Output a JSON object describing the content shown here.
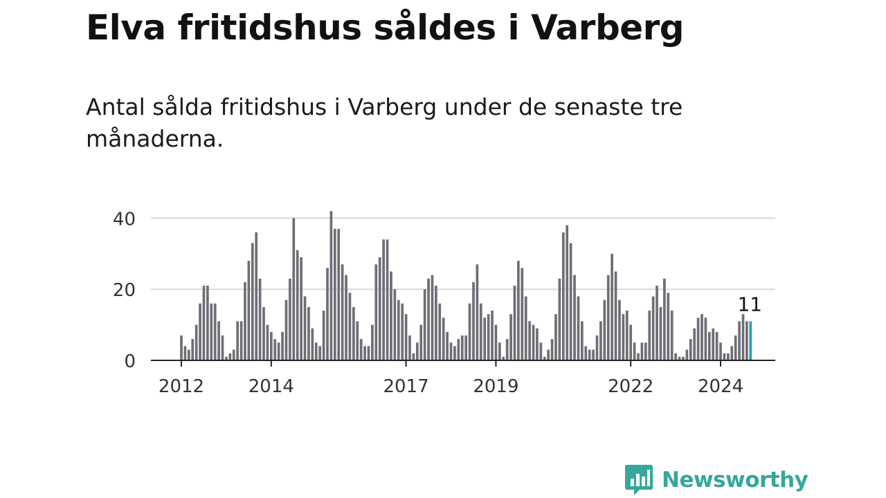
{
  "header": {
    "title": "Elva fritidshus såldes i Varberg",
    "subtitle": "Antal sålda fritidshus i Varberg under de senaste tre månaderna."
  },
  "brand": {
    "name": "Newsworthy",
    "logo_icon": "newsworthy-chart-bubble-icon"
  },
  "colors": {
    "bar": "#6f6e76",
    "highlight": "#1fa4a7",
    "grid": "#d9d9d9",
    "axis": "#222222",
    "brand": "#35a89a"
  },
  "chart_data": {
    "type": "bar",
    "start": "2012-01",
    "ylim": [
      0,
      45
    ],
    "yticks": [
      0,
      20,
      40
    ],
    "xticks": [
      {
        "label": "2012",
        "month": "2012-01"
      },
      {
        "label": "2014",
        "month": "2014-01"
      },
      {
        "label": "2017",
        "month": "2017-01"
      },
      {
        "label": "2019",
        "month": "2019-01"
      },
      {
        "label": "2022",
        "month": "2022-01"
      },
      {
        "label": "2024",
        "month": "2024-01"
      }
    ],
    "values": [
      7,
      4,
      3,
      6,
      10,
      16,
      21,
      21,
      16,
      16,
      11,
      7,
      1,
      2,
      3,
      11,
      11,
      22,
      28,
      33,
      36,
      23,
      15,
      10,
      8,
      6,
      5,
      8,
      17,
      23,
      40,
      31,
      29,
      18,
      15,
      9,
      5,
      4,
      14,
      26,
      42,
      37,
      37,
      27,
      24,
      19,
      15,
      11,
      6,
      4,
      4,
      10,
      27,
      29,
      34,
      34,
      25,
      20,
      17,
      16,
      13,
      7,
      2,
      5,
      10,
      20,
      23,
      24,
      21,
      16,
      12,
      8,
      5,
      4,
      6,
      7,
      7,
      16,
      22,
      27,
      16,
      12,
      13,
      14,
      10,
      5,
      1,
      6,
      13,
      21,
      28,
      26,
      18,
      11,
      10,
      9,
      5,
      1,
      3,
      6,
      13,
      23,
      36,
      38,
      33,
      24,
      18,
      11,
      4,
      3,
      3,
      7,
      11,
      17,
      24,
      30,
      25,
      17,
      13,
      14,
      10,
      5,
      2,
      5,
      5,
      14,
      18,
      21,
      15,
      23,
      19,
      14,
      2,
      1,
      1,
      3,
      6,
      9,
      12,
      13,
      12,
      8,
      9,
      8,
      5,
      2,
      2,
      4,
      7,
      11,
      13,
      11,
      11
    ],
    "highlight": {
      "month": "2024-09",
      "value": 11,
      "label": "11"
    }
  }
}
